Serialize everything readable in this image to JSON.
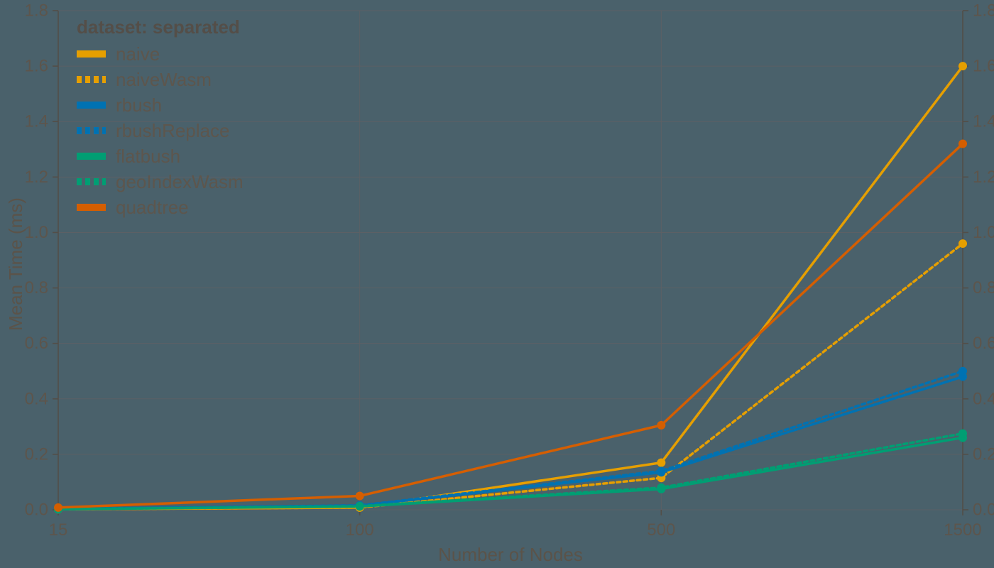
{
  "chart_data": {
    "type": "line",
    "legend_title": "dataset: separated",
    "xlabel": "Number of Nodes",
    "ylabel": "Mean Time (ms)",
    "x_scale": "point",
    "categories": [
      "15",
      "100",
      "500",
      "1500"
    ],
    "ylim": [
      0,
      1.8
    ],
    "ytick_labels": [
      "0.0",
      "0.2",
      "0.4",
      "0.6",
      "0.8",
      "1.0",
      "1.2",
      "1.4",
      "1.6",
      "1.8"
    ],
    "grid": true,
    "y_axis_sides": [
      "left",
      "right"
    ],
    "legend_position": "top-left",
    "series": [
      {
        "name": "naive",
        "color": "#E69F00",
        "dashed": false,
        "values": [
          0.002,
          0.008,
          0.17,
          1.6
        ]
      },
      {
        "name": "naiveWasm",
        "color": "#E69F00",
        "dashed": true,
        "values": [
          0.002,
          0.008,
          0.115,
          0.96
        ]
      },
      {
        "name": "rbush",
        "color": "#0072B2",
        "dashed": false,
        "values": [
          0.003,
          0.015,
          0.135,
          0.48
        ]
      },
      {
        "name": "rbushReplace",
        "color": "#0072B2",
        "dashed": true,
        "values": [
          0.003,
          0.016,
          0.14,
          0.5
        ]
      },
      {
        "name": "flatbush",
        "color": "#009E73",
        "dashed": false,
        "values": [
          0.002,
          0.012,
          0.075,
          0.26
        ]
      },
      {
        "name": "geoIndexWasm",
        "color": "#009E73",
        "dashed": true,
        "values": [
          0.002,
          0.013,
          0.08,
          0.275
        ]
      },
      {
        "name": "quadtree",
        "color": "#D55E00",
        "dashed": false,
        "values": [
          0.008,
          0.05,
          0.305,
          1.32
        ]
      }
    ],
    "ui_colors": {
      "background": "#4a616b",
      "gridline": "#5c6065",
      "axis": "#534e48",
      "text": "#5d554c"
    }
  }
}
